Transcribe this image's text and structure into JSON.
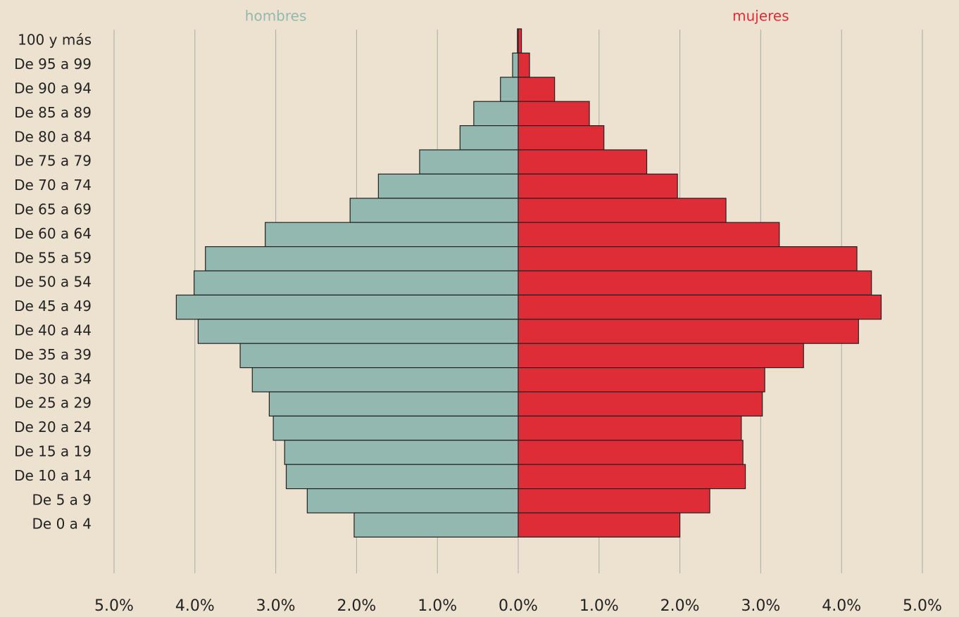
{
  "chart_data": {
    "type": "pyramid",
    "categories": [
      "100 y más",
      "De 95 a 99",
      "De 90 a 94",
      "De 85 a 89",
      "De 80 a 84",
      "De 75 a 79",
      "De 70 a 74",
      "De 65 a 69",
      "De 60 a 64",
      "De 55 a 59",
      "De 50 a 54",
      "De 45 a 49",
      "De 40 a 44",
      "De 35 a 39",
      "De 30 a 34",
      "De 25 a 29",
      "De 20 a 24",
      "De 15 a 19",
      "De 10 a 14",
      "De 5 a 9",
      "De 0 a 4"
    ],
    "series": [
      {
        "name": "hombres",
        "color": "#93b8af",
        "values": [
          0.01,
          0.07,
          0.22,
          0.55,
          0.72,
          1.22,
          1.73,
          2.08,
          3.13,
          3.87,
          4.01,
          4.23,
          3.96,
          3.44,
          3.29,
          3.08,
          3.03,
          2.89,
          2.87,
          2.61,
          2.03
        ]
      },
      {
        "name": "mujeres",
        "color": "#df2d38",
        "values": [
          0.04,
          0.14,
          0.45,
          0.88,
          1.06,
          1.59,
          1.97,
          2.57,
          3.23,
          4.19,
          4.37,
          4.49,
          4.21,
          3.53,
          3.05,
          3.02,
          2.76,
          2.78,
          2.81,
          2.37,
          2.0
        ]
      }
    ],
    "xlim": [
      -5,
      5
    ],
    "xticks": [
      {
        "value": -5,
        "label": "5.0%"
      },
      {
        "value": -4,
        "label": "4.0%"
      },
      {
        "value": -3,
        "label": "3.0%"
      },
      {
        "value": -2,
        "label": "2.0%"
      },
      {
        "value": -1,
        "label": "1.0%"
      },
      {
        "value": 0,
        "label": "0.0%"
      },
      {
        "value": 1,
        "label": "1.0%"
      },
      {
        "value": 2,
        "label": "2.0%"
      },
      {
        "value": 3,
        "label": "3.0%"
      },
      {
        "value": 4,
        "label": "4.0%"
      },
      {
        "value": 5,
        "label": "5.0%"
      }
    ],
    "grid": true
  }
}
